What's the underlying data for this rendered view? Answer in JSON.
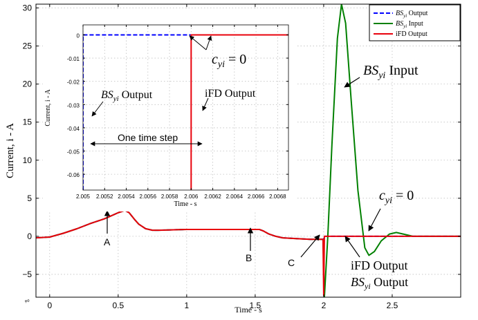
{
  "chart_data": [
    {
      "type": "line",
      "xlabel": "Time - s",
      "ylabel": "Current, i - A",
      "xlim": [
        -0.1,
        3.0
      ],
      "ylim": [
        -8,
        30.5
      ],
      "grid": true,
      "legend_placement": "top-right",
      "xticks": [
        0,
        0.5,
        1,
        1.5,
        2,
        2.5
      ],
      "xtick_labels": [
        "0",
        "0.5",
        "1",
        "1.5",
        "2",
        "2.5"
      ],
      "yticks": [
        -5,
        0,
        5,
        10,
        15,
        20,
        25,
        30
      ],
      "ytick_labels": [
        "−5",
        "0",
        "5",
        "10",
        "15",
        "20",
        "25",
        "30"
      ],
      "series": [
        {
          "name": "BS_yi Output",
          "legend_label": "BS",
          "legend_sub": "yi",
          "legend_rest": " Output",
          "color": "#0000ff",
          "style": "dashed",
          "x": [
            -0.1,
            0.0,
            0.1,
            0.2,
            0.3,
            0.4,
            0.45,
            0.5,
            0.55,
            0.58,
            0.62,
            0.65,
            0.7,
            0.75,
            0.8,
            1.0,
            1.2,
            1.4,
            1.5,
            1.53,
            1.56,
            1.6,
            1.65,
            1.7,
            1.8,
            1.9,
            1.98,
            2.0,
            2.005,
            2.01,
            2.2,
            2.5,
            2.8,
            3.0
          ],
          "y": [
            -0.2,
            -0.1,
            0.4,
            1.0,
            1.7,
            2.3,
            2.7,
            3.1,
            3.4,
            3.1,
            2.2,
            1.6,
            1.0,
            0.8,
            0.8,
            0.9,
            0.9,
            0.9,
            0.9,
            0.9,
            0.7,
            0.3,
            0.0,
            -0.2,
            -0.3,
            -0.4,
            -0.4,
            -0.4,
            0.0,
            0.0,
            0.0,
            0.0,
            0.0,
            0.0
          ]
        },
        {
          "name": "BS_yi Input",
          "legend_label": "BS",
          "legend_sub": "yi",
          "legend_rest": " Input",
          "color": "#008000",
          "style": "solid",
          "x": [
            -0.1,
            0.0,
            0.1,
            0.2,
            0.3,
            0.4,
            0.45,
            0.5,
            0.55,
            0.58,
            0.62,
            0.65,
            0.7,
            0.75,
            0.8,
            1.0,
            1.2,
            1.4,
            1.5,
            1.53,
            1.56,
            1.6,
            1.65,
            1.7,
            1.8,
            1.9,
            1.98,
            1.995,
            2.005,
            2.03,
            2.06,
            2.1,
            2.13,
            2.16,
            2.2,
            2.25,
            2.3,
            2.33,
            2.37,
            2.42,
            2.48,
            2.53,
            2.58,
            2.65,
            2.8,
            3.0
          ],
          "y": [
            -0.2,
            -0.1,
            0.4,
            1.0,
            1.7,
            2.3,
            2.7,
            3.1,
            3.4,
            3.1,
            2.2,
            1.6,
            1.0,
            0.8,
            0.8,
            0.9,
            0.9,
            0.9,
            0.9,
            0.9,
            0.7,
            0.3,
            0.0,
            -0.2,
            -0.3,
            -0.4,
            -0.4,
            -0.4,
            -8.0,
            0.0,
            12.0,
            26.0,
            30.5,
            28.0,
            18.0,
            6.0,
            -1.5,
            -2.5,
            -2.0,
            -0.6,
            0.3,
            0.5,
            0.3,
            0.0,
            0.0,
            0.0
          ]
        },
        {
          "name": "iFD Output",
          "legend_label": "iFD Output",
          "color": "#e8000b",
          "style": "solid",
          "x": [
            -0.1,
            0.0,
            0.1,
            0.2,
            0.3,
            0.4,
            0.45,
            0.5,
            0.55,
            0.58,
            0.62,
            0.65,
            0.7,
            0.75,
            0.8,
            1.0,
            1.2,
            1.4,
            1.5,
            1.53,
            1.56,
            1.6,
            1.65,
            1.7,
            1.8,
            1.9,
            1.98,
            1.995,
            2.0,
            2.005,
            2.01,
            2.2,
            2.5,
            2.8,
            3.0
          ],
          "y": [
            -0.2,
            -0.1,
            0.4,
            1.0,
            1.7,
            2.3,
            2.7,
            3.1,
            3.4,
            3.1,
            2.2,
            1.6,
            1.0,
            0.8,
            0.8,
            0.9,
            0.9,
            0.9,
            0.9,
            0.9,
            0.7,
            0.3,
            0.0,
            -0.2,
            -0.3,
            -0.4,
            -0.4,
            -0.4,
            -7.8,
            0.0,
            0.0,
            0.0,
            0.0,
            0.0,
            0.0
          ]
        }
      ],
      "annotations": {
        "A": "A",
        "B": "B",
        "C": "C",
        "input_pre": "BS",
        "input_sub": "yi",
        "input_post": " Input",
        "cy_pre": "c",
        "cy_sub": "yi",
        "cy_post": " = 0",
        "ifd_label": "iFD Output",
        "bs_pre": "BS",
        "bs_sub": "yi",
        "bs_post": " Output"
      },
      "corner_mark": "φ0"
    },
    {
      "type": "line",
      "xlabel": "Time - s",
      "ylabel": "Current, i - A",
      "xlim": [
        2.005,
        2.0069
      ],
      "ylim": [
        -0.0668,
        0.0043
      ],
      "grid": true,
      "xticks": [
        2.005,
        2.0052,
        2.0054,
        2.0056,
        2.0058,
        2.006,
        2.0062,
        2.0064,
        2.0066,
        2.0068
      ],
      "xtick_labels": [
        "2.005",
        "2.0052",
        "2.0054",
        "2.0056",
        "2.0058",
        "2.006",
        "2.0062",
        "2.0064",
        "2.0066",
        "2.0068"
      ],
      "yticks": [
        0,
        -0.01,
        -0.02,
        -0.03,
        -0.04,
        -0.05,
        -0.06
      ],
      "ytick_labels": [
        "0",
        "-0.01",
        "-0.02",
        "-0.03",
        "-0.04",
        "-0.05",
        "-0.06"
      ],
      "series": [
        {
          "name": "BS_yi Output",
          "color": "#0000ff",
          "style": "dashed",
          "x": [
            2.005,
            2.005,
            2.0069
          ],
          "y": [
            -0.0668,
            0.0,
            0.0
          ]
        },
        {
          "name": "iFD Output",
          "color": "#e8000b",
          "style": "solid",
          "x": [
            2.006,
            2.006,
            2.0069
          ],
          "y": [
            -0.0668,
            0.0,
            0.0
          ]
        }
      ],
      "annotations": {
        "one_step": "One time step",
        "cy_pre": "c",
        "cy_sub": "yi",
        "cy_post": " = 0",
        "bs_pre": "BS",
        "bs_sub": "yi",
        "bs_post": " Output",
        "ifd_label": "iFD Output"
      }
    }
  ]
}
